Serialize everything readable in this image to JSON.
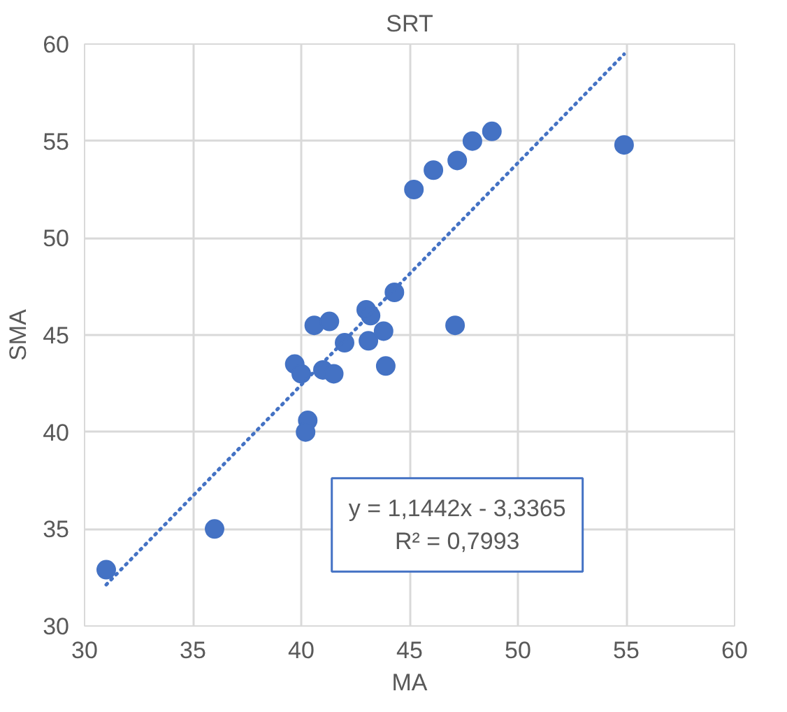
{
  "chart_data": {
    "type": "scatter",
    "title": "SRT",
    "xlabel": "MA",
    "ylabel": "SMA",
    "xlim": [
      30,
      60
    ],
    "xticks": [
      30,
      35,
      40,
      45,
      50,
      55,
      60
    ],
    "ylim": [
      30,
      60
    ],
    "yticks": [
      30,
      35,
      40,
      45,
      50,
      55,
      60
    ],
    "grid": true,
    "series": [
      {
        "marker": "circle",
        "color": "#4472c4",
        "x": [
          31.0,
          36.0,
          39.7,
          40.0,
          40.3,
          40.2,
          41.0,
          41.5,
          42.0,
          43.1,
          43.9,
          43.8,
          40.6,
          41.3,
          43.0,
          43.2,
          44.3,
          47.1,
          45.2,
          46.1,
          47.2,
          47.9,
          48.8,
          54.9
        ],
        "values": [
          32.9,
          35.0,
          43.5,
          43.0,
          40.6,
          40.0,
          43.2,
          43.0,
          44.6,
          44.7,
          43.4,
          45.2,
          45.5,
          45.7,
          46.3,
          46.0,
          47.2,
          45.5,
          52.5,
          53.5,
          54.0,
          55.0,
          55.5,
          54.8
        ]
      },
      {
        "type": "line",
        "color": "#4472c4",
        "line_style": "dotted",
        "x": [
          31.0,
          54.9
        ],
        "values": [
          32.13,
          59.48
        ]
      }
    ],
    "annotations": [
      "y = 1,1442x - 3,3365",
      "R² = 0,7993"
    ]
  }
}
